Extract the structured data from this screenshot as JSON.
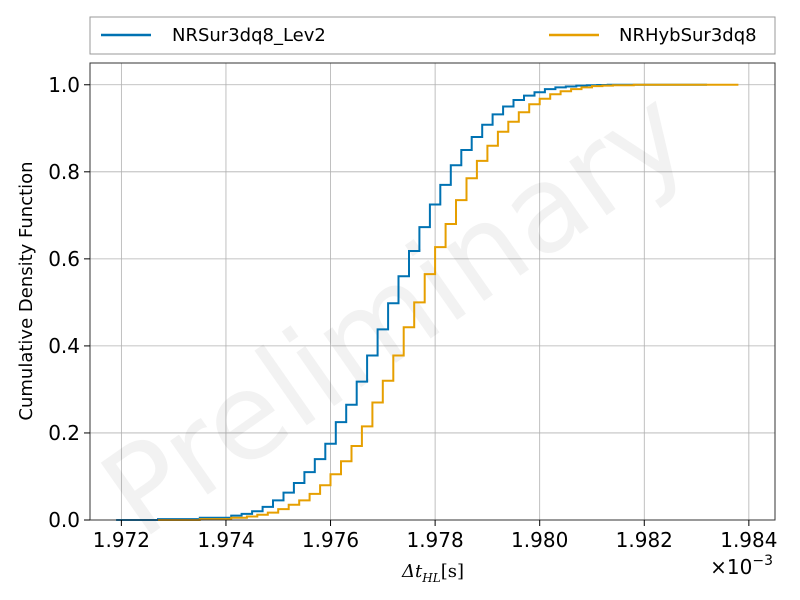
{
  "chart_data": {
    "type": "line",
    "style": "step",
    "xlabel": "Δt_HL[s]",
    "xlabel_main": "Δt",
    "xlabel_sub": "HL",
    "xlabel_unit": "[s]",
    "x_offset_text": "×10",
    "x_offset_exp": "−3",
    "ylabel": "Cumulative Density Function",
    "xlim": [
      1.9714,
      1.9845
    ],
    "ylim": [
      0,
      1.05
    ],
    "xticks": [
      1.972,
      1.974,
      1.976,
      1.978,
      1.98,
      1.982,
      1.984
    ],
    "xtick_labels": [
      "1.972",
      "1.974",
      "1.976",
      "1.978",
      "1.980",
      "1.982",
      "1.984"
    ],
    "yticks": [
      0.0,
      0.2,
      0.4,
      0.6,
      0.8,
      1.0
    ],
    "ytick_labels": [
      "0.0",
      "0.2",
      "0.4",
      "0.6",
      "0.8",
      "1.0"
    ],
    "grid": true,
    "legend_position": "top, outside plot, two columns",
    "watermark": "Preliminary",
    "series": [
      {
        "name": "NRSur3dq8_Lev2",
        "color": "#0072B2",
        "x": [
          1.9719,
          1.9727,
          1.9735,
          1.9741,
          1.9743,
          1.9745,
          1.9747,
          1.9749,
          1.9751,
          1.9753,
          1.9755,
          1.9757,
          1.9759,
          1.9761,
          1.9763,
          1.9765,
          1.9767,
          1.9769,
          1.9771,
          1.9773,
          1.9775,
          1.9777,
          1.9779,
          1.9781,
          1.9783,
          1.9785,
          1.9787,
          1.9789,
          1.9791,
          1.9793,
          1.9795,
          1.9797,
          1.9799,
          1.9801,
          1.9803,
          1.9805,
          1.9807,
          1.9809,
          1.9811,
          1.9813,
          1.9815,
          1.982,
          1.9825,
          1.9832
        ],
        "y": [
          0.0,
          0.002,
          0.005,
          0.01,
          0.014,
          0.02,
          0.03,
          0.045,
          0.063,
          0.085,
          0.11,
          0.14,
          0.175,
          0.225,
          0.265,
          0.318,
          0.378,
          0.438,
          0.498,
          0.56,
          0.618,
          0.673,
          0.725,
          0.77,
          0.815,
          0.85,
          0.88,
          0.908,
          0.932,
          0.95,
          0.965,
          0.975,
          0.983,
          0.99,
          0.994,
          0.996,
          0.998,
          0.999,
          0.9995,
          0.9998,
          1.0,
          1.0,
          1.0,
          1.0
        ]
      },
      {
        "name": "NRHybSur3dq8",
        "color": "#E69F00",
        "x": [
          1.9727,
          1.9735,
          1.9741,
          1.9744,
          1.9746,
          1.9748,
          1.975,
          1.9752,
          1.9754,
          1.9756,
          1.9758,
          1.976,
          1.9762,
          1.9764,
          1.9766,
          1.9768,
          1.977,
          1.9772,
          1.9774,
          1.9776,
          1.9778,
          1.978,
          1.9782,
          1.9784,
          1.9786,
          1.9788,
          1.979,
          1.9792,
          1.9794,
          1.9796,
          1.9798,
          1.98,
          1.9802,
          1.9804,
          1.9806,
          1.9808,
          1.981,
          1.9812,
          1.9814,
          1.9818,
          1.9824,
          1.983,
          1.9838
        ],
        "y": [
          0.0,
          0.002,
          0.005,
          0.008,
          0.012,
          0.017,
          0.025,
          0.035,
          0.045,
          0.06,
          0.08,
          0.105,
          0.135,
          0.17,
          0.215,
          0.27,
          0.32,
          0.378,
          0.443,
          0.5,
          0.565,
          0.627,
          0.68,
          0.735,
          0.785,
          0.825,
          0.86,
          0.892,
          0.915,
          0.937,
          0.955,
          0.968,
          0.978,
          0.985,
          0.99,
          0.994,
          0.997,
          0.998,
          0.999,
          1.0,
          1.0,
          1.0,
          1.0
        ]
      }
    ]
  }
}
